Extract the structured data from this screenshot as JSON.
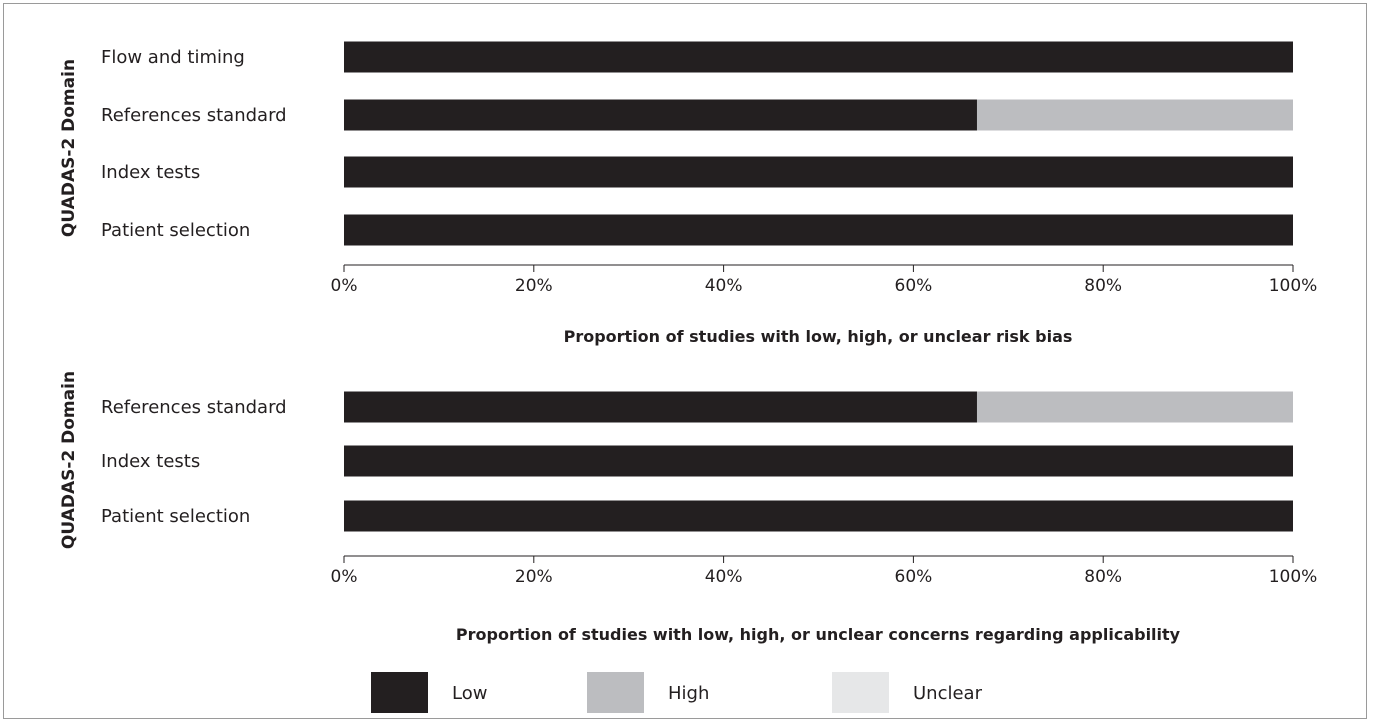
{
  "colors": {
    "Low": "#231f20",
    "High": "#bcbdc0",
    "Unclear": "#e6e7e8"
  },
  "chart_data": [
    {
      "type": "bar",
      "orientation": "horizontal",
      "stacked": true,
      "ylabel": "QUADAS-2 Domain",
      "xlabel": "Proportion of studies with low, high, or unclear risk bias",
      "xlim": [
        0,
        100
      ],
      "xticks": [
        "0%",
        "20%",
        "40%",
        "60%",
        "80%",
        "100%"
      ],
      "categories": [
        "Flow and timing",
        "References standard",
        "Index tests",
        "Patient selection"
      ],
      "series": [
        {
          "name": "Low",
          "values": [
            100,
            66.7,
            100,
            100
          ]
        },
        {
          "name": "High",
          "values": [
            0,
            33.3,
            0,
            0
          ]
        },
        {
          "name": "Unclear",
          "values": [
            0,
            0,
            0,
            0
          ]
        }
      ]
    },
    {
      "type": "bar",
      "orientation": "horizontal",
      "stacked": true,
      "ylabel": "QUADAS-2 Domain",
      "xlabel": "Proportion of studies with low, high, or unclear concerns regarding applicability",
      "xlim": [
        0,
        100
      ],
      "xticks": [
        "0%",
        "20%",
        "40%",
        "60%",
        "80%",
        "100%"
      ],
      "categories": [
        "References standard",
        "Index tests",
        "Patient selection"
      ],
      "series": [
        {
          "name": "Low",
          "values": [
            66.7,
            100,
            100
          ]
        },
        {
          "name": "High",
          "values": [
            33.3,
            0,
            0
          ]
        },
        {
          "name": "Unclear",
          "values": [
            0,
            0,
            0
          ]
        }
      ]
    }
  ],
  "legend": [
    "Low",
    "High",
    "Unclear"
  ]
}
